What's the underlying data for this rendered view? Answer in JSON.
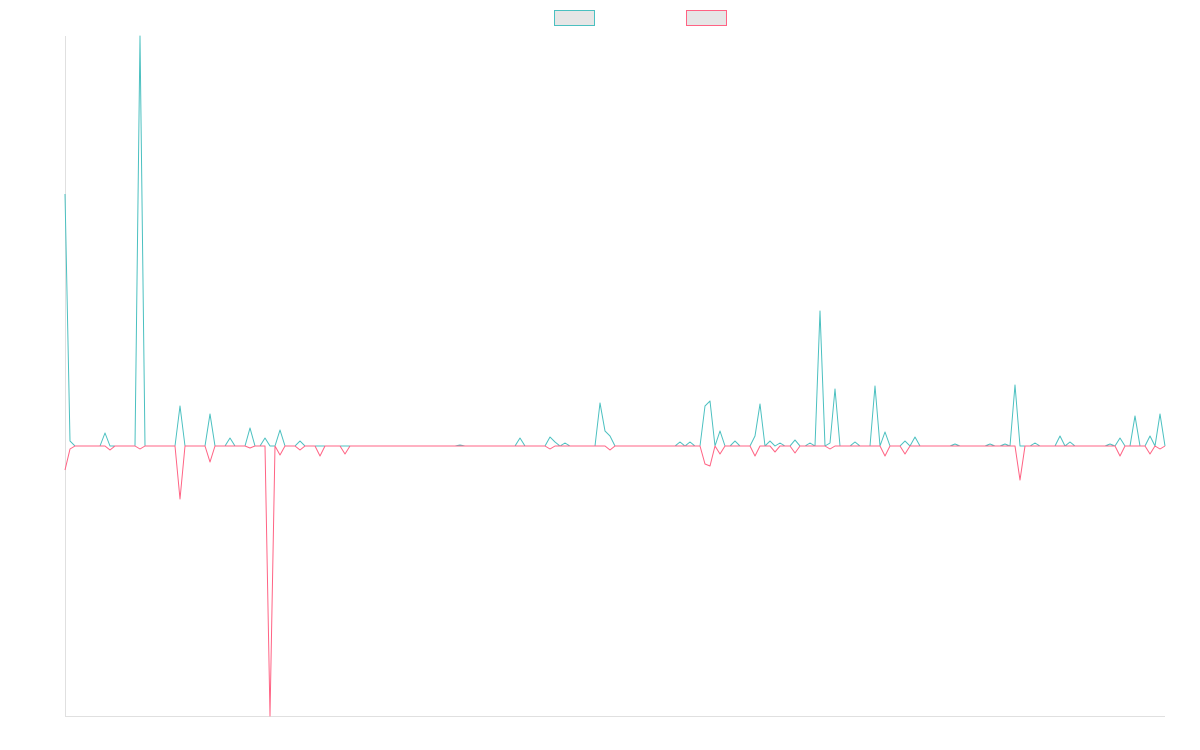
{
  "chart_data": {
    "type": "line",
    "legend": "top",
    "ylim": [
      -270,
      410
    ],
    "series": [
      {
        "color": "#4bc0c0",
        "values": [
          252,
          5,
          0,
          0,
          0,
          0,
          0,
          0,
          13,
          0,
          0,
          0,
          0,
          0,
          0,
          410,
          0,
          0,
          0,
          0,
          0,
          0,
          0,
          40,
          0,
          0,
          0,
          0,
          0,
          32,
          0,
          0,
          0,
          8,
          0,
          0,
          0,
          18,
          0,
          0,
          8,
          0,
          0,
          16,
          0,
          0,
          0,
          5,
          0,
          0,
          0,
          0,
          0,
          0,
          0,
          0,
          0,
          0,
          0,
          0,
          0,
          0,
          0,
          0,
          0,
          0,
          0,
          0,
          0,
          0,
          0,
          0,
          0,
          0,
          0,
          0,
          0,
          0,
          0,
          1,
          0,
          0,
          0,
          0,
          0,
          0,
          0,
          0,
          0,
          0,
          0,
          8,
          0,
          0,
          0,
          0,
          0,
          9,
          4,
          0,
          3,
          0,
          0,
          0,
          0,
          0,
          0,
          43,
          15,
          10,
          0,
          0,
          0,
          0,
          0,
          0,
          0,
          0,
          0,
          0,
          0,
          0,
          0,
          4,
          0,
          4,
          0,
          0,
          40,
          45,
          0,
          15,
          0,
          0,
          5,
          0,
          0,
          0,
          10,
          42,
          0,
          5,
          0,
          3,
          0,
          0,
          6,
          0,
          0,
          3,
          0,
          135,
          0,
          3,
          57,
          0,
          0,
          0,
          4,
          0,
          0,
          0,
          60,
          0,
          14,
          0,
          0,
          0,
          5,
          0,
          9,
          0,
          0,
          0,
          0,
          0,
          0,
          0,
          2,
          0,
          0,
          0,
          0,
          0,
          0,
          2,
          0,
          0,
          2,
          0,
          61,
          0,
          0,
          0,
          3,
          0,
          0,
          0,
          0,
          10,
          0,
          4,
          0,
          0,
          0,
          0,
          0,
          0,
          0,
          2,
          0,
          8,
          0,
          0,
          30,
          0,
          0,
          10,
          0,
          32,
          0
        ]
      },
      {
        "color": "#ff6384",
        "values": [
          -24,
          -3,
          0,
          0,
          0,
          0,
          0,
          0,
          0,
          -4,
          0,
          0,
          0,
          0,
          0,
          -3,
          0,
          0,
          0,
          0,
          0,
          0,
          0,
          -53,
          0,
          0,
          0,
          0,
          0,
          -16,
          0,
          0,
          0,
          0,
          0,
          0,
          0,
          -2,
          0,
          0,
          0,
          -270,
          0,
          -9,
          0,
          0,
          0,
          -4,
          0,
          0,
          0,
          -10,
          0,
          0,
          0,
          0,
          -8,
          0,
          0,
          0,
          0,
          0,
          0,
          0,
          0,
          0,
          0,
          0,
          0,
          0,
          0,
          0,
          0,
          0,
          0,
          0,
          0,
          0,
          0,
          0,
          0,
          0,
          0,
          0,
          0,
          0,
          0,
          0,
          0,
          0,
          0,
          0,
          0,
          0,
          0,
          0,
          0,
          -3,
          0,
          0,
          0,
          0,
          0,
          0,
          0,
          0,
          0,
          0,
          0,
          -4,
          0,
          0,
          0,
          0,
          0,
          0,
          0,
          0,
          0,
          0,
          0,
          0,
          0,
          0,
          0,
          0,
          0,
          0,
          -18,
          -20,
          0,
          -8,
          0,
          0,
          0,
          0,
          0,
          0,
          -10,
          0,
          0,
          0,
          -6,
          0,
          0,
          0,
          -7,
          0,
          0,
          0,
          0,
          0,
          0,
          -3,
          0,
          0,
          0,
          0,
          0,
          0,
          0,
          0,
          0,
          0,
          -10,
          0,
          0,
          0,
          -8,
          0,
          0,
          0,
          0,
          0,
          0,
          0,
          0,
          0,
          0,
          0,
          0,
          0,
          0,
          0,
          0,
          0,
          0,
          0,
          0,
          0,
          0,
          -34,
          0,
          0,
          0,
          0,
          0,
          0,
          0,
          0,
          0,
          0,
          0,
          0,
          0,
          0,
          0,
          0,
          0,
          0,
          0,
          -10,
          0,
          0,
          0,
          0,
          0,
          -8,
          0,
          -3,
          0
        ]
      }
    ]
  }
}
